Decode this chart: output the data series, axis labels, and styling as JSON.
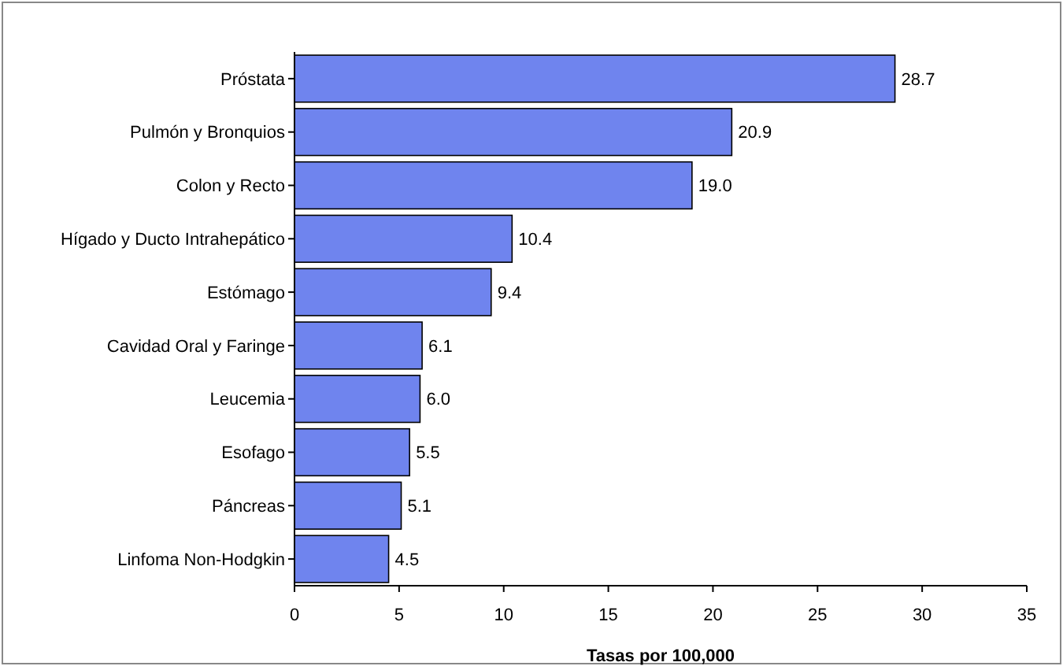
{
  "chart_data": {
    "type": "bar",
    "orientation": "horizontal",
    "xlabel": "Tasas por 100,000",
    "categories": [
      "Próstata",
      "Pulmón y Bronquios",
      "Colon y Recto",
      "Hígado y Ducto Intrahepático",
      "Estómago",
      "Cavidad Oral y Faringe",
      "Leucemia",
      "Esofago",
      "Páncreas",
      "Linfoma Non-Hodgkin"
    ],
    "values": [
      28.7,
      20.9,
      19.0,
      10.4,
      9.4,
      6.1,
      6.0,
      5.5,
      5.1,
      4.5
    ],
    "value_labels": [
      "28.7",
      "20.9",
      "19.0",
      "10.4",
      "9.4",
      "6.1",
      "6.0",
      "5.5",
      "5.1",
      "4.5"
    ],
    "color": "#6f84ee",
    "xlim": [
      0,
      35
    ],
    "xticks": [
      0,
      5,
      10,
      15,
      20,
      25,
      30,
      35
    ],
    "grid": false
  }
}
